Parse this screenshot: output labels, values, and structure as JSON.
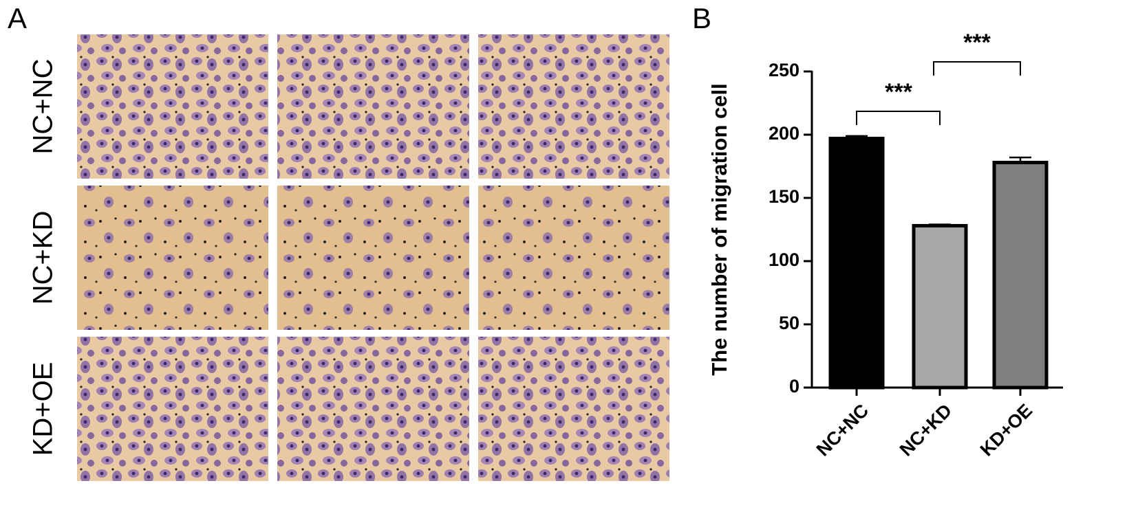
{
  "panel_labels": [
    "A",
    "B"
  ],
  "image_rows": [
    "NC+NC",
    "NC+KD",
    "KD+OE"
  ],
  "chart_data": {
    "type": "bar",
    "ylabel": "The number of migration cell",
    "categories": [
      "NC+NC",
      "NC+KD",
      "KD+OE"
    ],
    "values": [
      197,
      128,
      178
    ],
    "errors": [
      2,
      1,
      4
    ],
    "colors": [
      "#000000",
      "#a7a7aa",
      "#7f7f7f"
    ],
    "ylim": [
      0,
      250
    ],
    "yticks": [
      0,
      50,
      100,
      150,
      200,
      250
    ],
    "significance": [
      "***",
      "***"
    ]
  }
}
